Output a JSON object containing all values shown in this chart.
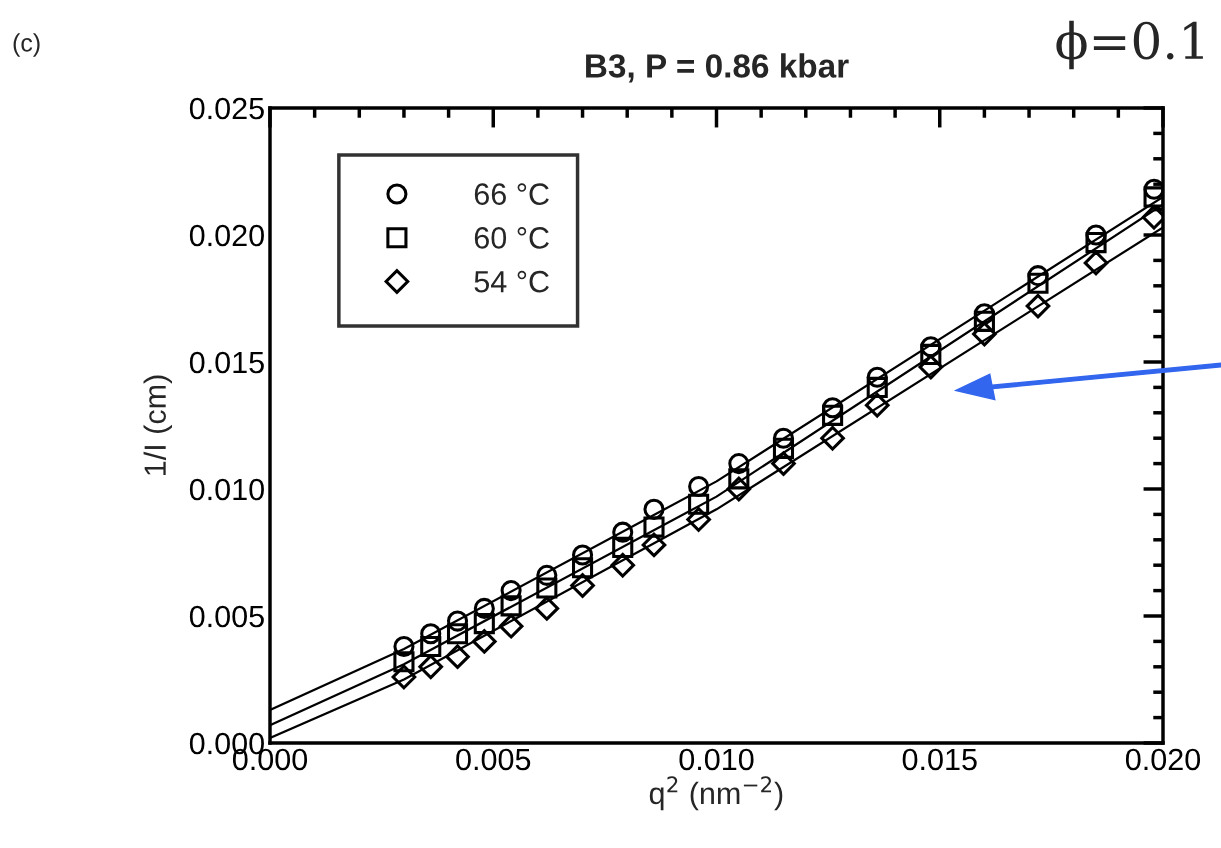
{
  "chart_data": {
    "type": "scatter",
    "title": "B3, P = 0.86 kbar",
    "xlabel": "q$^{2}$ (nm$^{−2}$)",
    "ylabel": "1/I (cm)",
    "annotations": [
      "(c)",
      "ϕ=0.1"
    ],
    "x": [
      0.003,
      0.0036,
      0.0042,
      0.0048,
      0.0054,
      0.0062,
      0.007,
      0.0079,
      0.0086,
      0.0096,
      0.0105,
      0.0115,
      0.0126,
      0.0136,
      0.0148,
      0.016,
      0.0172,
      0.0185,
      0.0198
    ],
    "series": [
      {
        "name": "66 °C",
        "color": "#000000",
        "marker": "circle",
        "values": [
          0.0038,
          0.0043,
          0.0048,
          0.0053,
          0.006,
          0.0066,
          0.0074,
          0.0083,
          0.0092,
          0.0101,
          0.011,
          0.012,
          0.0132,
          0.0144,
          0.0156,
          0.0169,
          0.0184,
          0.02,
          0.0218
        ]
      },
      {
        "name": "60 °C",
        "color": "#000000",
        "marker": "square",
        "values": [
          0.0032,
          0.0038,
          0.0043,
          0.0047,
          0.0054,
          0.0061,
          0.0069,
          0.0077,
          0.0085,
          0.0094,
          0.0104,
          0.0116,
          0.0129,
          0.014,
          0.0153,
          0.0166,
          0.0181,
          0.0197,
          0.0215
        ]
      },
      {
        "name": "54 °C",
        "color": "#000000",
        "marker": "diamond",
        "values": [
          0.0026,
          0.003,
          0.0034,
          0.004,
          0.0046,
          0.0053,
          0.0062,
          0.007,
          0.0078,
          0.0088,
          0.01,
          0.011,
          0.012,
          0.0133,
          0.0148,
          0.0161,
          0.0172,
          0.0189,
          0.0207
        ]
      },
      {
        "type": "line",
        "color": "#000000",
        "x": [
          0,
          0.003,
          0.01,
          0.02
        ],
        "values": [
          0.0013,
          0.0037,
          0.0103,
          0.0215
        ]
      },
      {
        "type": "line",
        "color": "#000000",
        "x": [
          0,
          0.003,
          0.01,
          0.02
        ],
        "values": [
          0.0007,
          0.0031,
          0.0097,
          0.0212
        ]
      },
      {
        "type": "line",
        "color": "#000000",
        "x": [
          0,
          0.003,
          0.01,
          0.02
        ],
        "values": [
          0.0002,
          0.0025,
          0.0092,
          0.0203
        ]
      }
    ],
    "xlim": [
      0,
      0.02
    ],
    "ylim": [
      0,
      0.025
    ],
    "xticks": [
      {
        "value": 0,
        "label": "0.000"
      },
      {
        "value": 0.005,
        "label": "0.005"
      },
      {
        "value": 0.01,
        "label": "0.010"
      },
      {
        "value": 0.015,
        "label": "0.015"
      },
      {
        "value": 0.02,
        "label": "0.020"
      }
    ],
    "yticks": [
      {
        "value": 0,
        "label": "0.000"
      },
      {
        "value": 0.005,
        "label": "0.005"
      },
      {
        "value": 0.01,
        "label": "0.010"
      },
      {
        "value": 0.015,
        "label": "0.015"
      },
      {
        "value": 0.02,
        "label": "0.020"
      },
      {
        "value": 0.025,
        "label": "0.025"
      }
    ],
    "grid": false,
    "legend": "top left"
  }
}
